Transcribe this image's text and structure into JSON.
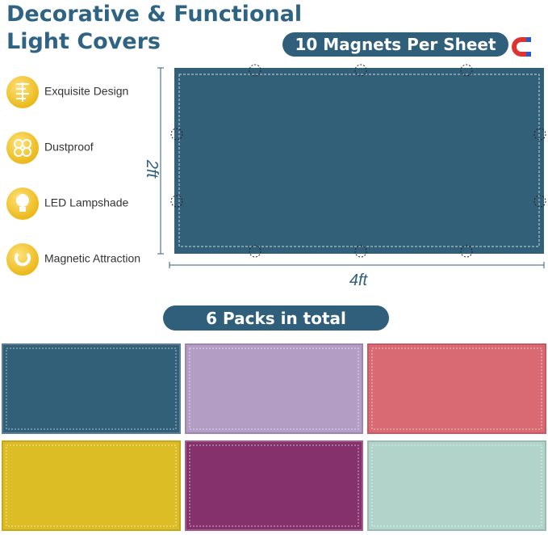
{
  "header": {
    "title_lines": [
      "Decorative & Functional",
      "Light Covers"
    ],
    "badge": "10 Magnets Per Sheet"
  },
  "features": [
    {
      "label": "Exquisite Design"
    },
    {
      "label": "Dustproof"
    },
    {
      "label": "LED Lampshade"
    },
    {
      "label": "Magnetic Attraction"
    }
  ],
  "dimensions": {
    "height": "2ft",
    "width": "4ft"
  },
  "packs": {
    "label": "6 Packs in total"
  }
}
